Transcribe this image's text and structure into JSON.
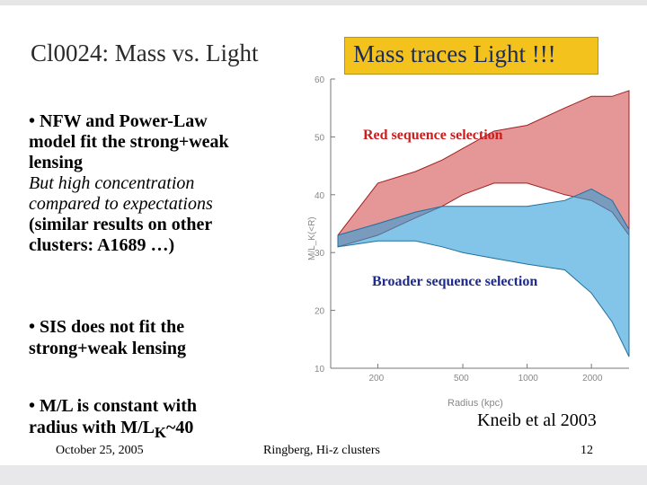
{
  "slide": {
    "title": "Cl0024: Mass vs. Light",
    "highlight": "Mass traces Light !!!",
    "bullet1": {
      "lines": [
        "• NFW and Power-Law",
        "model fit the strong+weak",
        "lensing"
      ],
      "italic_lines": [
        "But high concentration",
        "compared to expectations"
      ],
      "extra_lines": [
        "(similar results on other",
        "clusters: A1689 …)"
      ]
    },
    "bullet2": [
      "• SIS does not fit the",
      "strong+weak lensing"
    ],
    "bullet3": {
      "line1": "• M/L is constant with",
      "line2_pre": "radius with  M/L",
      "line2_sub": "K",
      "line2_post": "~40"
    },
    "credit": "Kneib et al 2003",
    "footer": {
      "date": "October 25, 2005",
      "center": "Ringberg, Hi-z clusters",
      "page": "12"
    },
    "colors": {
      "highlight_bg": "#f4c21c",
      "red_band": "#d04040",
      "blue_band": "#2f9fd8"
    }
  },
  "chart_data": {
    "type": "area",
    "title": "",
    "xlabel": "Radius (kpc)",
    "ylabel": "M/L_K(<R)",
    "x_ticks": [
      "200",
      "500",
      "1000",
      "2000"
    ],
    "y_ticks": [
      "10",
      "20",
      "30",
      "40",
      "50",
      "60"
    ],
    "x_values": [
      130,
      200,
      300,
      400,
      500,
      700,
      1000,
      1500,
      2000,
      2500,
      3000
    ],
    "ylim": [
      10,
      60
    ],
    "series": [
      {
        "name": "Red sequence selection",
        "upper": [
          33,
          42,
          44,
          46,
          48,
          51,
          52,
          55,
          57,
          57,
          58
        ],
        "lower": [
          31,
          33,
          36,
          38,
          40,
          42,
          42,
          40,
          39,
          37,
          33
        ]
      },
      {
        "name": "Broader sequence selection",
        "upper": [
          33,
          35,
          37,
          38,
          38,
          38,
          38,
          39,
          41,
          39,
          34
        ],
        "lower": [
          31,
          32,
          32,
          31,
          30,
          29,
          28,
          27,
          23,
          18,
          12
        ]
      }
    ]
  }
}
